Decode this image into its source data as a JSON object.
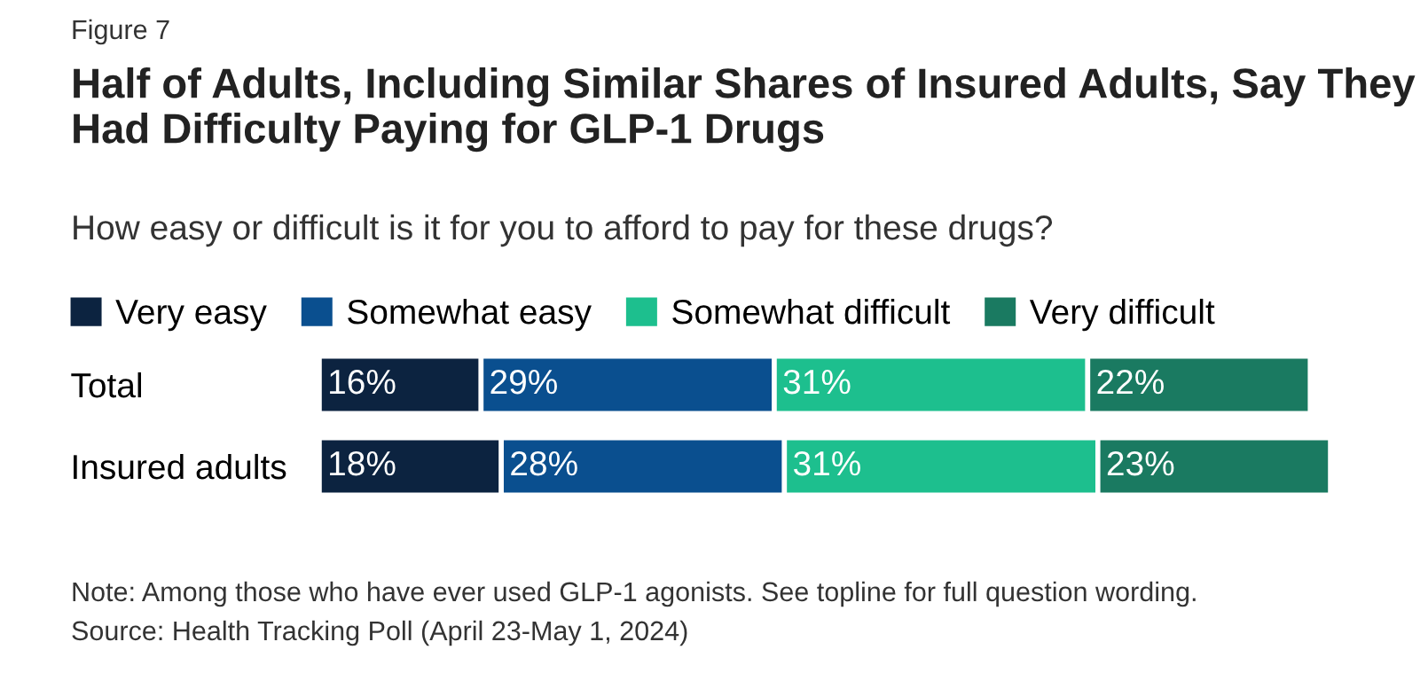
{
  "chart_data": {
    "type": "bar",
    "orientation": "horizontal",
    "stacked": true,
    "title": "Half of Adults, Including Similar Shares of Insured Adults, Say They Had Difficulty Paying for GLP-1 Drugs",
    "subtitle": "How easy or difficult is it for you to afford to pay for these drugs?",
    "categories": [
      "Total",
      "Insured adults"
    ],
    "series": [
      {
        "name": "Very easy",
        "color": "#0c2340",
        "values": [
          16,
          18
        ],
        "value_labels": [
          "16%",
          "18%"
        ]
      },
      {
        "name": "Somewhat easy",
        "color": "#0a4f8f",
        "values": [
          29,
          28
        ],
        "value_labels": [
          "29%",
          "28%"
        ]
      },
      {
        "name": "Somewhat difficult",
        "color": "#1dbf8e",
        "values": [
          31,
          31
        ],
        "value_labels": [
          "31%",
          "31%"
        ]
      },
      {
        "name": "Very difficult",
        "color": "#1a7a61",
        "values": [
          22,
          23
        ],
        "value_labels": [
          "22%",
          "23%"
        ]
      }
    ],
    "xlim": [
      0,
      100
    ],
    "tick_labels": "y",
    "legend": "top left",
    "grid": false,
    "annotations": [
      "Figure 7",
      "Note: Among those who have ever used GLP-1 agonists. See topline for full question wording.",
      "Source: Health Tracking Poll (April 23-May 1, 2024)"
    ]
  }
}
